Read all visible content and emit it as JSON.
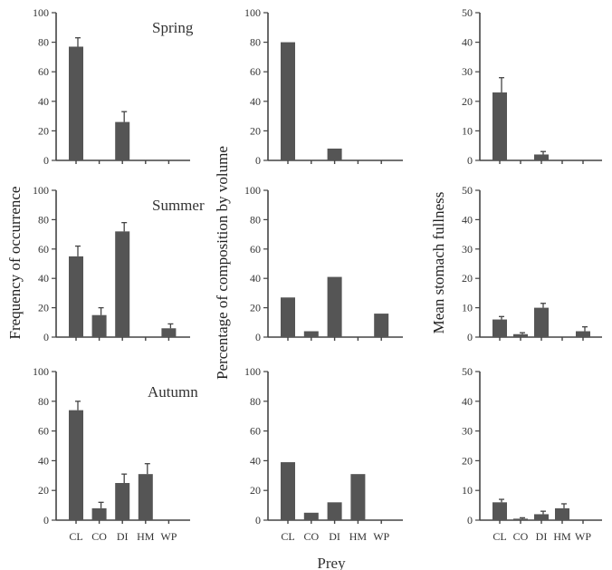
{
  "figure": {
    "xlabel": "Prey",
    "categories": [
      "CL",
      "CO",
      "DI",
      "HM",
      "WP"
    ],
    "seasons": [
      "Spring",
      "Summer",
      "Autumn"
    ],
    "columns": [
      {
        "ylabel": "Frequency of occurrence",
        "ylim": [
          0,
          100
        ],
        "ticks": [
          0,
          20,
          40,
          60,
          80,
          100
        ]
      },
      {
        "ylabel": "Percentage of composition by volume",
        "ylim": [
          0,
          100
        ],
        "ticks": [
          0,
          20,
          40,
          60,
          80,
          100
        ]
      },
      {
        "ylabel": "Mean stomach fullness",
        "ylim": [
          0,
          50
        ],
        "ticks": [
          0,
          10,
          20,
          30,
          40,
          50
        ]
      }
    ],
    "colors": {
      "bar": "#555555",
      "axis": "#444444"
    }
  },
  "chart_data": [
    {
      "type": "bar",
      "season": "Spring",
      "ylabel": "Frequency of occurrence",
      "categories": [
        "CL",
        "CO",
        "DI",
        "HM",
        "WP"
      ],
      "values": [
        77,
        0,
        26,
        0,
        0
      ],
      "errors": [
        6,
        0,
        7,
        0,
        0
      ],
      "ylim": [
        0,
        100
      ]
    },
    {
      "type": "bar",
      "season": "Spring",
      "ylabel": "Percentage of composition by volume",
      "categories": [
        "CL",
        "CO",
        "DI",
        "HM",
        "WP"
      ],
      "values": [
        80,
        0,
        8,
        0,
        0
      ],
      "ylim": [
        0,
        100
      ]
    },
    {
      "type": "bar",
      "season": "Spring",
      "ylabel": "Mean stomach fullness",
      "categories": [
        "CL",
        "CO",
        "DI",
        "HM",
        "WP"
      ],
      "values": [
        23,
        0,
        2,
        0,
        0
      ],
      "errors": [
        5,
        0,
        1,
        0,
        0
      ],
      "ylim": [
        0,
        50
      ]
    },
    {
      "type": "bar",
      "season": "Summer",
      "ylabel": "Frequency of occurrence",
      "categories": [
        "CL",
        "CO",
        "DI",
        "HM",
        "WP"
      ],
      "values": [
        55,
        15,
        72,
        0,
        6
      ],
      "errors": [
        7,
        5,
        6,
        0,
        3
      ],
      "ylim": [
        0,
        100
      ]
    },
    {
      "type": "bar",
      "season": "Summer",
      "ylabel": "Percentage of composition by volume",
      "categories": [
        "CL",
        "CO",
        "DI",
        "HM",
        "WP"
      ],
      "values": [
        27,
        4,
        41,
        0,
        16
      ],
      "ylim": [
        0,
        100
      ]
    },
    {
      "type": "bar",
      "season": "Summer",
      "ylabel": "Mean stomach fullness",
      "categories": [
        "CL",
        "CO",
        "DI",
        "HM",
        "WP"
      ],
      "values": [
        6,
        1,
        10,
        0,
        2
      ],
      "errors": [
        1,
        0.5,
        1.5,
        0,
        1.5
      ],
      "ylim": [
        0,
        50
      ]
    },
    {
      "type": "bar",
      "season": "Autumn",
      "ylabel": "Frequency of occurrence",
      "categories": [
        "CL",
        "CO",
        "DI",
        "HM",
        "WP"
      ],
      "values": [
        74,
        8,
        25,
        31,
        0
      ],
      "errors": [
        6,
        4,
        6,
        7,
        0
      ],
      "ylim": [
        0,
        100
      ]
    },
    {
      "type": "bar",
      "season": "Autumn",
      "ylabel": "Percentage of composition by volume",
      "categories": [
        "CL",
        "CO",
        "DI",
        "HM",
        "WP"
      ],
      "values": [
        39,
        5,
        12,
        31,
        0
      ],
      "ylim": [
        0,
        100
      ]
    },
    {
      "type": "bar",
      "season": "Autumn",
      "ylabel": "Mean stomach fullness",
      "categories": [
        "CL",
        "CO",
        "DI",
        "HM",
        "WP"
      ],
      "values": [
        6,
        0.5,
        2,
        4,
        0
      ],
      "errors": [
        1,
        0.3,
        1,
        1.5,
        0
      ],
      "ylim": [
        0,
        50
      ]
    }
  ]
}
